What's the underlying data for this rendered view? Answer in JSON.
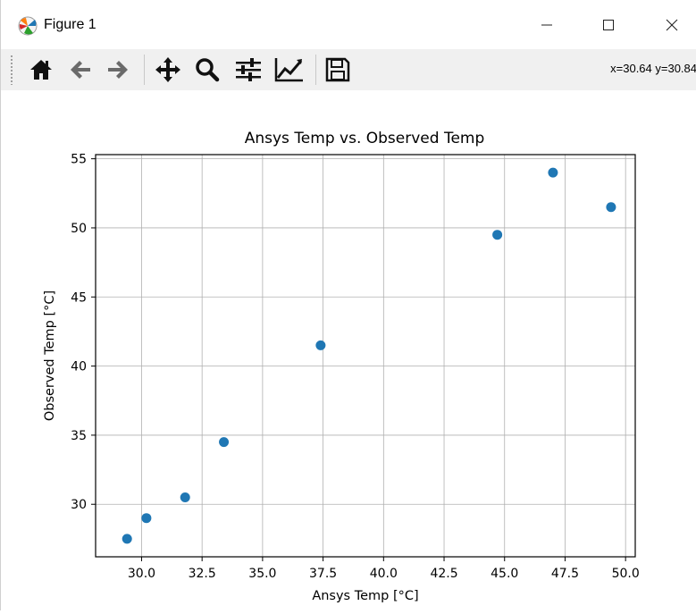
{
  "window": {
    "title": "Figure 1",
    "minimize_icon": "minimize-icon",
    "maximize_icon": "maximize-icon",
    "close_icon": "close-icon"
  },
  "toolbar": {
    "buttons": [
      {
        "name": "home-button",
        "icon": "home-icon"
      },
      {
        "name": "back-button",
        "icon": "arrow-left-icon"
      },
      {
        "name": "forward-button",
        "icon": "arrow-right-icon"
      },
      {
        "name": "pan-button",
        "icon": "move-icon"
      },
      {
        "name": "zoom-button",
        "icon": "magnifier-icon"
      },
      {
        "name": "subplots-button",
        "icon": "sliders-icon"
      },
      {
        "name": "edit-axis-button",
        "icon": "line-chart-icon"
      },
      {
        "name": "save-button",
        "icon": "floppy-disk-icon"
      }
    ],
    "coords_text": "x=30.64 y=30.84"
  },
  "chart_data": {
    "type": "scatter",
    "title": "Ansys Temp vs. Observed Temp",
    "xlabel": "Ansys Temp [°C]",
    "ylabel": "Observed Temp [°C]",
    "xlim": [
      28.1,
      50.4
    ],
    "ylim": [
      26.2,
      55.3
    ],
    "xticks": [
      30.0,
      32.5,
      35.0,
      37.5,
      40.0,
      42.5,
      45.0,
      47.5,
      50.0
    ],
    "xtick_labels": [
      "30.0",
      "32.5",
      "35.0",
      "37.5",
      "40.0",
      "42.5",
      "45.0",
      "47.5",
      "50.0"
    ],
    "yticks": [
      30,
      35,
      40,
      45,
      50,
      55
    ],
    "ytick_labels": [
      "30",
      "35",
      "40",
      "45",
      "50",
      "55"
    ],
    "grid": true,
    "marker_color": "#1f77b4",
    "series": [
      {
        "x": [
          29.4,
          30.2,
          31.8,
          33.4,
          37.4,
          44.7,
          47.0,
          49.4
        ],
        "y": [
          27.5,
          29.0,
          30.5,
          34.5,
          41.5,
          49.5,
          54.0,
          51.5
        ]
      }
    ]
  }
}
